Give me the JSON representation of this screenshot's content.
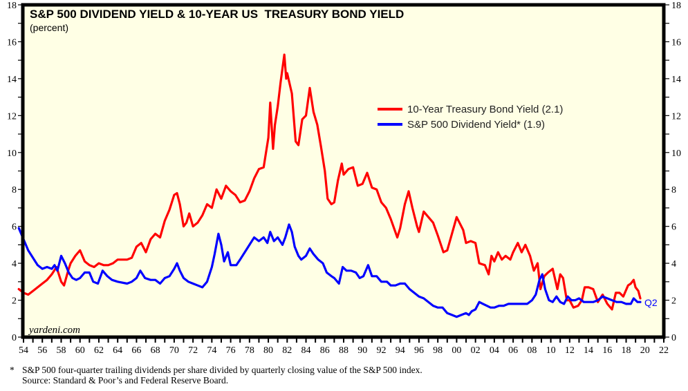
{
  "chart_data": {
    "type": "line",
    "title": "S&P 500 DIVIDEND YIELD & 10-YEAR US  TREASURY BOND YIELD",
    "subtitle": "(percent)",
    "xlabel": "",
    "ylabel": "",
    "xlim": [
      1954,
      2022
    ],
    "ylim": [
      0,
      18
    ],
    "grid": false,
    "legend_position": "upper-right-center",
    "x_tick_labels": [
      "54",
      "56",
      "58",
      "60",
      "62",
      "64",
      "66",
      "68",
      "70",
      "72",
      "74",
      "76",
      "78",
      "80",
      "82",
      "84",
      "86",
      "88",
      "90",
      "92",
      "94",
      "96",
      "98",
      "00",
      "02",
      "04",
      "06",
      "08",
      "10",
      "12",
      "14",
      "16",
      "18",
      "20",
      "22"
    ],
    "x_ticks": [
      1954,
      1956,
      1958,
      1960,
      1962,
      1964,
      1966,
      1968,
      1970,
      1972,
      1974,
      1976,
      1978,
      1980,
      1982,
      1984,
      1986,
      1988,
      1990,
      1992,
      1994,
      1996,
      1998,
      2000,
      2002,
      2004,
      2006,
      2008,
      2010,
      2012,
      2014,
      2016,
      2018,
      2020,
      2022
    ],
    "y_ticks": [
      0,
      2,
      4,
      6,
      8,
      10,
      12,
      14,
      16,
      18
    ],
    "y_tick_labels": [
      "0",
      "2",
      "4",
      "6",
      "8",
      "10",
      "12",
      "14",
      "16",
      "18"
    ],
    "watermark": "yardeni.com",
    "end_label": "Q2",
    "series": [
      {
        "name": "10-Year Treasury Bond Yield (2.1)",
        "color": "#ff0000",
        "x": [
          1953.5,
          1954,
          1954.5,
          1955,
          1956,
          1956.5,
          1957,
          1957.5,
          1958,
          1958.3,
          1958.8,
          1959,
          1959.5,
          1960,
          1960.5,
          1961,
          1961.5,
          1962,
          1962.5,
          1963,
          1963.5,
          1964,
          1965,
          1965.5,
          1966,
          1966.5,
          1967,
          1967.5,
          1968,
          1968.5,
          1969,
          1969.5,
          1970,
          1970.3,
          1970.6,
          1971,
          1971.3,
          1971.6,
          1972,
          1972.5,
          1973,
          1973.5,
          1974,
          1974.5,
          1975,
          1975.5,
          1976,
          1976.5,
          1977,
          1977.5,
          1978,
          1978.5,
          1979,
          1979.5,
          1980,
          1980.2,
          1980.5,
          1980.7,
          1981,
          1981.3,
          1981.7,
          1981.9,
          1982,
          1982.5,
          1982.9,
          1983.2,
          1983.6,
          1984,
          1984.4,
          1984.8,
          1985.2,
          1985.6,
          1986,
          1986.3,
          1986.7,
          1987,
          1987.4,
          1987.8,
          1988,
          1988.5,
          1989,
          1989.5,
          1990,
          1990.5,
          1991,
          1991.5,
          1992,
          1992.5,
          1993,
          1993.7,
          1994,
          1994.5,
          1994.9,
          1995.3,
          1995.8,
          1996,
          1996.5,
          1997,
          1997.5,
          1998,
          1998.6,
          1999,
          1999.5,
          2000,
          2000.3,
          2000.7,
          2001,
          2001.5,
          2002,
          2002.4,
          2003,
          2003.4,
          2003.7,
          2004,
          2004.4,
          2004.8,
          2005.2,
          2005.7,
          2006,
          2006.5,
          2006.9,
          2007.3,
          2007.8,
          2008.2,
          2008.6,
          2008.9,
          2009.3,
          2009.7,
          2010.2,
          2010.7,
          2011,
          2011.3,
          2011.7,
          2012,
          2012.4,
          2012.9,
          2013.3,
          2013.6,
          2014,
          2014.5,
          2015,
          2015.5,
          2016,
          2016.5,
          2016.9,
          2017.3,
          2017.7,
          2018.2,
          2018.5,
          2018.8,
          2019,
          2019.3,
          2019.5
        ],
        "values": [
          2.6,
          2.4,
          2.3,
          2.5,
          2.9,
          3.1,
          3.4,
          3.8,
          3.0,
          2.8,
          3.7,
          4.0,
          4.4,
          4.7,
          4.1,
          3.9,
          3.8,
          4.0,
          3.9,
          3.9,
          4.0,
          4.2,
          4.2,
          4.3,
          4.9,
          5.1,
          4.6,
          5.3,
          5.6,
          5.4,
          6.3,
          6.9,
          7.7,
          7.8,
          7.2,
          6.0,
          6.2,
          6.7,
          6.0,
          6.2,
          6.6,
          7.2,
          7.0,
          8.0,
          7.5,
          8.2,
          7.9,
          7.7,
          7.3,
          7.4,
          7.9,
          8.6,
          9.1,
          9.2,
          10.8,
          12.7,
          10.2,
          11.5,
          12.5,
          13.8,
          15.3,
          14.0,
          14.3,
          13.2,
          10.6,
          10.4,
          11.8,
          12.0,
          13.5,
          12.2,
          11.5,
          10.3,
          9.0,
          7.5,
          7.2,
          7.3,
          8.5,
          9.4,
          8.8,
          9.1,
          9.2,
          8.2,
          8.3,
          8.9,
          8.1,
          8.0,
          7.3,
          7.0,
          6.4,
          5.4,
          5.9,
          7.2,
          7.9,
          7.0,
          6.0,
          5.7,
          6.8,
          6.5,
          6.2,
          5.5,
          4.6,
          4.7,
          5.6,
          6.5,
          6.2,
          5.8,
          5.1,
          5.2,
          5.1,
          4.0,
          3.9,
          3.4,
          4.4,
          4.1,
          4.6,
          4.2,
          4.4,
          4.2,
          4.6,
          5.1,
          4.6,
          5.0,
          4.4,
          3.6,
          4.0,
          2.6,
          3.3,
          3.5,
          3.7,
          2.6,
          3.4,
          3.2,
          2.0,
          2.0,
          1.6,
          1.7,
          2.0,
          2.7,
          2.7,
          2.6,
          1.9,
          2.3,
          1.8,
          1.5,
          2.4,
          2.4,
          2.2,
          2.8,
          2.9,
          3.1,
          2.7,
          2.5,
          2.1
        ]
      },
      {
        "name": "S&P 500 Dividend Yield* (1.9)",
        "color": "#0000ff",
        "x": [
          1953.5,
          1954,
          1954.5,
          1955,
          1955.5,
          1956,
          1956.5,
          1957,
          1957.3,
          1957.6,
          1958,
          1958.4,
          1958.8,
          1959.2,
          1959.6,
          1960,
          1960.5,
          1961,
          1961.4,
          1961.9,
          1962.4,
          1962.9,
          1963.4,
          1964,
          1965,
          1965.5,
          1966,
          1966.4,
          1966.9,
          1967.5,
          1968,
          1968.5,
          1969,
          1969.5,
          1970,
          1970.3,
          1970.6,
          1971,
          1971.5,
          1972,
          1972.5,
          1973,
          1973.5,
          1974,
          1974.3,
          1974.7,
          1975,
          1975.3,
          1975.7,
          1976,
          1976.6,
          1977,
          1977.5,
          1978,
          1978.5,
          1979,
          1979.5,
          1979.9,
          1980.2,
          1980.6,
          1981,
          1981.5,
          1981.8,
          1982.2,
          1982.5,
          1982.8,
          1983.2,
          1983.5,
          1984,
          1984.4,
          1984.8,
          1985.3,
          1985.8,
          1986.2,
          1986.7,
          1987,
          1987.5,
          1987.9,
          1988.3,
          1988.8,
          1989.3,
          1989.7,
          1990.1,
          1990.6,
          1991,
          1991.5,
          1992,
          1992.6,
          1993,
          1993.5,
          1994,
          1994.5,
          1995,
          1995.5,
          1996,
          1996.5,
          1997,
          1997.5,
          1998,
          1998.5,
          1999,
          1999.5,
          2000,
          2000.5,
          2001,
          2001.3,
          2001.6,
          2002,
          2002.4,
          2002.8,
          2003.2,
          2003.6,
          2004,
          2004.5,
          2005,
          2005.5,
          2006,
          2006.5,
          2007,
          2007.5,
          2008,
          2008.4,
          2008.8,
          2009.1,
          2009.4,
          2009.8,
          2010.2,
          2010.6,
          2011,
          2011.4,
          2011.8,
          2012.2,
          2012.6,
          2013,
          2013.5,
          2014,
          2014.5,
          2015,
          2015.5,
          2016,
          2016.5,
          2017,
          2017.5,
          2018,
          2018.5,
          2018.8,
          2019.2,
          2019.5
        ],
        "values": [
          5.9,
          5.3,
          4.7,
          4.3,
          3.9,
          3.7,
          3.8,
          3.7,
          3.9,
          3.6,
          4.4,
          4.0,
          3.5,
          3.2,
          3.1,
          3.2,
          3.5,
          3.5,
          3.0,
          2.9,
          3.6,
          3.3,
          3.1,
          3.0,
          2.9,
          3.0,
          3.2,
          3.6,
          3.2,
          3.1,
          3.1,
          2.9,
          3.2,
          3.3,
          3.7,
          4.0,
          3.6,
          3.2,
          3.0,
          2.9,
          2.8,
          2.7,
          3.0,
          3.8,
          4.5,
          5.6,
          5.0,
          4.1,
          4.6,
          3.9,
          3.9,
          4.2,
          4.6,
          5.0,
          5.4,
          5.2,
          5.4,
          5.1,
          5.7,
          5.2,
          5.4,
          5.0,
          5.4,
          6.1,
          5.7,
          4.9,
          4.4,
          4.2,
          4.4,
          4.8,
          4.5,
          4.2,
          4.0,
          3.5,
          3.3,
          3.2,
          2.9,
          3.8,
          3.6,
          3.6,
          3.5,
          3.2,
          3.3,
          3.9,
          3.3,
          3.3,
          3.0,
          3.0,
          2.8,
          2.8,
          2.9,
          2.9,
          2.6,
          2.4,
          2.2,
          2.1,
          1.9,
          1.7,
          1.6,
          1.6,
          1.3,
          1.2,
          1.1,
          1.2,
          1.3,
          1.2,
          1.4,
          1.5,
          1.9,
          1.8,
          1.7,
          1.6,
          1.6,
          1.7,
          1.7,
          1.8,
          1.8,
          1.8,
          1.8,
          1.8,
          2.0,
          2.3,
          3.1,
          3.4,
          2.6,
          2.0,
          1.9,
          2.2,
          1.9,
          1.8,
          2.2,
          2.0,
          2.0,
          2.1,
          1.9,
          1.9,
          1.9,
          2.0,
          2.2,
          2.1,
          2.0,
          1.9,
          1.9,
          1.8,
          1.8,
          2.1,
          1.9,
          1.9
        ]
      }
    ]
  },
  "footnote": {
    "marker": "*",
    "line1": "S&P 500 four-quarter trailing dividends per share divided by quarterly closing value of the S&P 500 index.",
    "line2": "Source: Standard & Poor’s and Federal Reserve Board."
  }
}
